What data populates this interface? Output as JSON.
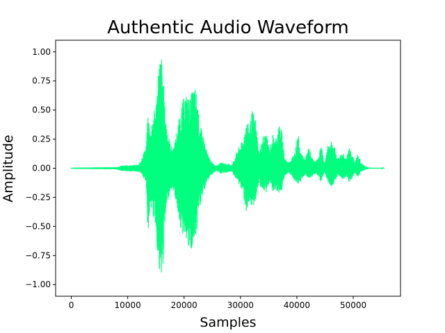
{
  "chart_data": {
    "type": "line",
    "title": "Authentic Audio Waveform",
    "xlabel": "Samples",
    "ylabel": "Amplitude",
    "xlim": [
      -2780,
      58380
    ],
    "ylim": [
      -1.1,
      1.1
    ],
    "xticks": [
      0,
      10000,
      20000,
      30000,
      40000,
      50000
    ],
    "xtick_labels": [
      "0",
      "10000",
      "20000",
      "30000",
      "40000",
      "50000"
    ],
    "yticks": [
      -1.0,
      -0.75,
      -0.5,
      -0.25,
      0.0,
      0.25,
      0.5,
      0.75,
      1.0
    ],
    "ytick_labels": [
      "−1.00",
      "−0.75",
      "−0.50",
      "−0.25",
      "0.00",
      "0.25",
      "0.50",
      "0.75",
      "1.00"
    ],
    "grid": false,
    "line_color": "#00ff7f",
    "series": [
      {
        "envelope_x": [
          0,
          8000,
          9000,
          12000,
          13300,
          13600,
          14000,
          14400,
          15000,
          15600,
          16100,
          16600,
          17000,
          17600,
          18200,
          19000,
          19600,
          20200,
          21000,
          21800,
          22200,
          22700,
          23300,
          24000,
          24800,
          25700,
          26500,
          27500,
          28500,
          29500,
          30500,
          31000,
          31600,
          32100,
          32700,
          33300,
          33900,
          34600,
          35200,
          35700,
          36200,
          36800,
          37300,
          37800,
          38400,
          39000,
          39700,
          40200,
          40800,
          41500,
          42100,
          42600,
          43100,
          43700,
          44300,
          44900,
          45500,
          46100,
          46700,
          47200,
          47700,
          48300,
          48800,
          49200,
          49700,
          50200,
          50800,
          51400,
          52000,
          52500,
          53000,
          55500
        ],
        "envelope_pos": [
          0.005,
          0.01,
          0.025,
          0.03,
          0.2,
          0.48,
          0.3,
          0.45,
          0.55,
          0.95,
          0.97,
          0.5,
          0.35,
          0.2,
          0.18,
          0.4,
          0.55,
          0.65,
          0.6,
          0.72,
          0.66,
          0.4,
          0.3,
          0.15,
          0.06,
          0.02,
          0.05,
          0.04,
          0.03,
          0.16,
          0.25,
          0.42,
          0.36,
          0.5,
          0.42,
          0.12,
          0.28,
          0.3,
          0.16,
          0.3,
          0.25,
          0.38,
          0.34,
          0.1,
          0.05,
          0.08,
          0.15,
          0.3,
          0.12,
          0.08,
          0.2,
          0.1,
          0.06,
          0.08,
          0.2,
          0.04,
          0.2,
          0.25,
          0.18,
          0.08,
          0.12,
          0.14,
          0.08,
          0.18,
          0.16,
          0.05,
          0.12,
          0.05,
          0.02,
          0.01,
          0.005,
          0.003
        ],
        "envelope_neg": [
          -0.005,
          -0.01,
          -0.025,
          -0.03,
          -0.12,
          -0.58,
          -0.3,
          -0.4,
          -0.5,
          -0.98,
          -1.0,
          -0.5,
          -0.3,
          -0.18,
          -0.2,
          -0.4,
          -0.6,
          -0.55,
          -0.78,
          -0.65,
          -0.6,
          -0.35,
          -0.25,
          -0.12,
          -0.06,
          -0.02,
          -0.05,
          -0.04,
          -0.03,
          -0.12,
          -0.22,
          -0.38,
          -0.36,
          -0.35,
          -0.28,
          -0.12,
          -0.2,
          -0.22,
          -0.1,
          -0.2,
          -0.18,
          -0.22,
          -0.2,
          -0.08,
          -0.04,
          -0.06,
          -0.12,
          -0.16,
          -0.1,
          -0.06,
          -0.09,
          -0.08,
          -0.05,
          -0.06,
          -0.12,
          -0.03,
          -0.12,
          -0.16,
          -0.12,
          -0.06,
          -0.08,
          -0.1,
          -0.06,
          -0.12,
          -0.1,
          -0.04,
          -0.08,
          -0.03,
          -0.015,
          -0.008,
          -0.004,
          -0.003
        ]
      }
    ]
  }
}
